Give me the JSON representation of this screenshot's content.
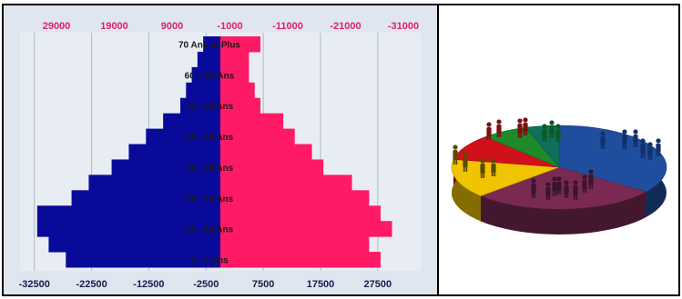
{
  "chart_data": [
    {
      "type": "bar",
      "orientation": "horizontal",
      "subtype": "population-pyramid",
      "categories": [
        "0 - 4 Ans",
        "",
        "10 - 14 Ans",
        "",
        "20 - 24 Ans",
        "",
        "30 - 34 Ans",
        "",
        "40 - 44 Ans",
        "",
        "50 - 54 Ans",
        "",
        "60 – 64 Ans",
        "",
        "70 Ans et Plus"
      ],
      "series": [
        {
          "color": "#0a0a9a",
          "values": [
            -27000,
            -30000,
            -32000,
            -32000,
            -26000,
            -23000,
            -19000,
            -16000,
            -13000,
            -10000,
            -7000,
            -6000,
            -5000,
            -4000,
            -3000
          ]
        },
        {
          "color": "#ff1a66",
          "values": [
            28000,
            26000,
            30000,
            28000,
            26000,
            23000,
            18000,
            16000,
            13000,
            11000,
            7000,
            6000,
            5000,
            5000,
            7000
          ]
        }
      ],
      "xaxis_bottom": {
        "ticks": [
          -32500,
          -22500,
          -12500,
          -2500,
          7500,
          17500,
          27500
        ],
        "labels": [
          "-32500",
          "-22500",
          "-12500",
          "-2500",
          "7500",
          "17500",
          "27500"
        ]
      },
      "xaxis_top": {
        "labels": [
          "29000",
          "19000",
          "9000",
          "-1000",
          "-11000",
          "-21000",
          "-31000"
        ]
      },
      "grid": true
    },
    {
      "type": "pie",
      "style": "3d",
      "values": [
        35,
        28,
        15,
        10,
        7,
        5
      ],
      "colors": [
        "#1f4e9e",
        "#7a2a52",
        "#f0c400",
        "#d0101a",
        "#1e8a2a",
        "#0f6f5a"
      ]
    }
  ]
}
